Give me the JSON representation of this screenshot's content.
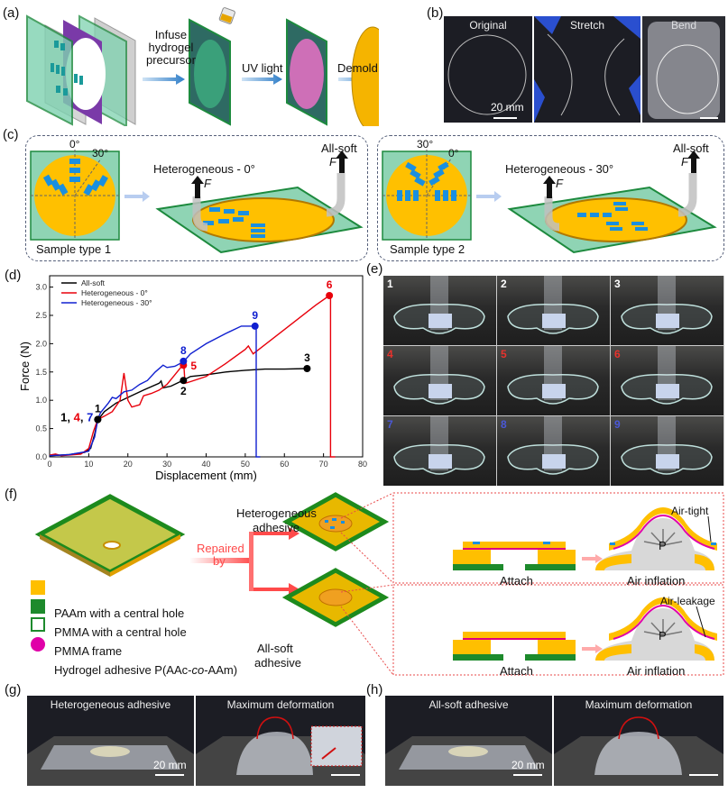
{
  "panels": {
    "a": {
      "label": "(a)",
      "step1": "Infuse\nhydrogel\nprecursor",
      "step1_lines": [
        "Infuse",
        "hydrogel",
        "precursor"
      ],
      "step2": "UV light",
      "step3": "Demold"
    },
    "b": {
      "label": "(b)",
      "photos": [
        "Original",
        "Stretch",
        "Bend"
      ],
      "scale": "20 mm"
    },
    "c": {
      "label": "(c)",
      "type1": {
        "angle_top": "0°",
        "angle_side": "30°",
        "name": "Sample type 1",
        "peel_label": "Heterogeneous - 0°",
        "soft_label": "All-soft",
        "force": "F"
      },
      "type2": {
        "angle_top": "30°",
        "angle_side": "0°",
        "name": "Sample type 2",
        "peel_label": "Heterogeneous - 30°",
        "soft_label": "All-soft",
        "force": "F"
      }
    },
    "d": {
      "label": "(d)"
    },
    "e": {
      "label": "(e)",
      "cells": [
        {
          "n": "1",
          "color": "#ffffff"
        },
        {
          "n": "2",
          "color": "#ffffff"
        },
        {
          "n": "3",
          "color": "#ffffff"
        },
        {
          "n": "4",
          "color": "#e8322c"
        },
        {
          "n": "5",
          "color": "#e8322c"
        },
        {
          "n": "6",
          "color": "#e8322c"
        },
        {
          "n": "7",
          "color": "#4a58d8"
        },
        {
          "n": "8",
          "color": "#4a58d8"
        },
        {
          "n": "9",
          "color": "#4a58d8"
        }
      ]
    },
    "f": {
      "label": "(f)",
      "repaired": "Repaired",
      "by": "by",
      "hetero_line1": "Heterogeneous",
      "hetero_line2": "adhesive",
      "soft_line1": "All-soft",
      "soft_line2": "adhesive",
      "legend": [
        {
          "text": "PAAm with a central hole",
          "color": "#ffbf00"
        },
        {
          "text": "PMMA with a central hole",
          "color": "#1f8a2c"
        },
        {
          "text": "PMMA frame",
          "color": "#1f8a2c"
        },
        {
          "text_pre": "Hydrogel adhesive P(AAc-",
          "text_it": "co",
          "text_post": "-AAm)",
          "color": "#e000a8"
        }
      ],
      "attach": "Attach",
      "inflation": "Air inflation",
      "airtight": "Air-tight",
      "airleak": "Air-leakage",
      "pressure": "P"
    },
    "g": {
      "label": "(g)",
      "left": "Heterogeneous adhesive",
      "right": "Maximum deformation",
      "scale": "20 mm"
    },
    "h": {
      "label": "(h)",
      "left": "All-soft adhesive",
      "right": "Maximum deformation",
      "scale": "20 mm"
    }
  },
  "chart_data": {
    "type": "line",
    "xlabel": "Displacement (mm)",
    "ylabel": "Force (N)",
    "xlim": [
      0,
      80
    ],
    "ylim": [
      0,
      3.2
    ],
    "xticks": [
      "0",
      "10",
      "20",
      "30",
      "40",
      "50",
      "60",
      "70",
      "80"
    ],
    "yticks": [
      "0.0",
      "0.5",
      "1.0",
      "1.5",
      "2.0",
      "2.5",
      "3.0"
    ],
    "legend_position": "top-left",
    "series": [
      {
        "name": "All-soft",
        "color": "#000000",
        "x": [
          0,
          5,
          9,
          10.5,
          11.5,
          12.3,
          14,
          17,
          20,
          24,
          28,
          28.5,
          29,
          31,
          34,
          36,
          40,
          45,
          50,
          55,
          60,
          65.8
        ],
        "y": [
          0.02,
          0.04,
          0.08,
          0.15,
          0.4,
          0.65,
          0.8,
          0.95,
          1.05,
          1.18,
          1.3,
          1.34,
          1.22,
          1.25,
          1.35,
          1.42,
          1.45,
          1.5,
          1.53,
          1.55,
          1.55,
          1.56
        ]
      },
      {
        "name": "Heterogeneous - 0°",
        "color": "#e8000b",
        "x": [
          0,
          1.5,
          3,
          8,
          10,
          11.2,
          12.3,
          14,
          16,
          18,
          19,
          20,
          21,
          23,
          24,
          26,
          28,
          30,
          32,
          34,
          34.3,
          34.6,
          36,
          40,
          45,
          50,
          50.8,
          52,
          60,
          68,
          71.5,
          71.8,
          71.8,
          73
        ],
        "y": [
          0.03,
          0.05,
          0.02,
          0.05,
          0.15,
          0.45,
          0.66,
          0.72,
          0.8,
          1.0,
          1.48,
          1.0,
          0.88,
          0.92,
          1.08,
          1.12,
          1.18,
          1.28,
          1.45,
          1.62,
          1.62,
          1.3,
          1.33,
          1.42,
          1.65,
          1.9,
          1.96,
          1.82,
          2.25,
          2.68,
          2.85,
          2.85,
          0.0,
          0.0
        ]
      },
      {
        "name": "Heterogeneous - 30°",
        "color": "#1020d0",
        "x": [
          0,
          5,
          10,
          11.5,
          12.3,
          13,
          15,
          16,
          17,
          19,
          21,
          23,
          25,
          27,
          29,
          30,
          32,
          34.2,
          36,
          40,
          45,
          49,
          52.5,
          52.8,
          52.8,
          53.8
        ],
        "y": [
          0.02,
          0.04,
          0.1,
          0.35,
          0.66,
          0.78,
          0.95,
          1.05,
          1.03,
          1.15,
          1.18,
          1.28,
          1.35,
          1.5,
          1.62,
          1.58,
          1.6,
          1.68,
          1.82,
          2.0,
          2.18,
          2.31,
          2.31,
          2.31,
          0.0,
          0.0
        ]
      }
    ],
    "points": [
      {
        "label": "1",
        "x": 12.3,
        "y": 0.66,
        "color": "#000000"
      },
      {
        "label": "2",
        "x": 34.2,
        "y": 1.35,
        "color": "#000000"
      },
      {
        "label": "3",
        "x": 65.8,
        "y": 1.56,
        "color": "#000000"
      },
      {
        "label": "5",
        "x": 34.2,
        "y": 1.62,
        "color": "#e8000b"
      },
      {
        "label": "6",
        "x": 71.5,
        "y": 2.85,
        "color": "#e8000b"
      },
      {
        "label": "8",
        "x": 34.2,
        "y": 1.69,
        "color": "#1020d0"
      },
      {
        "label": "9",
        "x": 52.5,
        "y": 2.31,
        "color": "#1020d0"
      }
    ],
    "annotation_147": [
      {
        "t": "1",
        "color": "#000000"
      },
      {
        "t": ", ",
        "color": "#000000"
      },
      {
        "t": "4",
        "color": "#e8000b"
      },
      {
        "t": ", ",
        "color": "#000000"
      },
      {
        "t": "7",
        "color": "#1020d0"
      }
    ]
  }
}
